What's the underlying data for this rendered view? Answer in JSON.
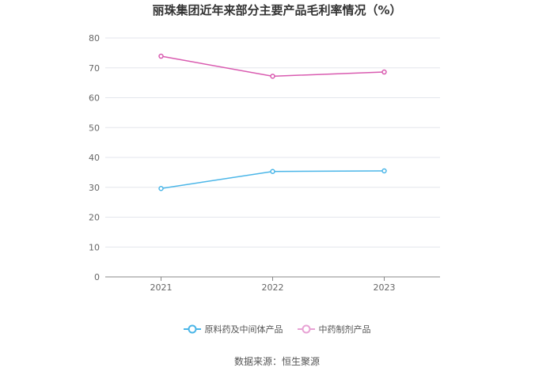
{
  "chart_data": {
    "type": "line",
    "title": "丽珠集团近年来部分主要产品毛利率情况（%）",
    "categories": [
      "2021",
      "2022",
      "2023"
    ],
    "ylim": [
      0,
      80
    ],
    "yticks": [
      0,
      10,
      20,
      30,
      40,
      50,
      60,
      70,
      80
    ],
    "grid": true,
    "legend_position": "bottom",
    "series": [
      {
        "name": "原料药及中间体产品",
        "color": "#4bb6e8",
        "values": [
          29.6,
          35.3,
          35.5
        ]
      },
      {
        "name": "中药制剂产品",
        "color": "#d95bb0",
        "values": [
          73.9,
          67.2,
          68.6
        ]
      }
    ]
  },
  "source": "数据来源：恒生聚源"
}
